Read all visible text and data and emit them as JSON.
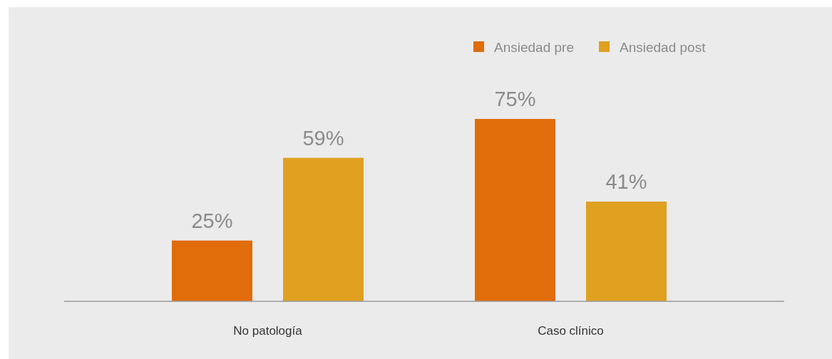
{
  "chart_data": {
    "type": "bar",
    "categories": [
      "No patología",
      "Caso clínico"
    ],
    "series": [
      {
        "name": "Ansiedad pre",
        "color": "#e06c0a",
        "values": [
          25,
          75
        ],
        "value_labels": [
          "25%",
          "75%"
        ]
      },
      {
        "name": "Ansiedad post",
        "color": "#e0a020",
        "values": [
          59,
          41
        ],
        "value_labels": [
          "59%",
          "41%"
        ]
      }
    ],
    "legend": "top right"
  }
}
